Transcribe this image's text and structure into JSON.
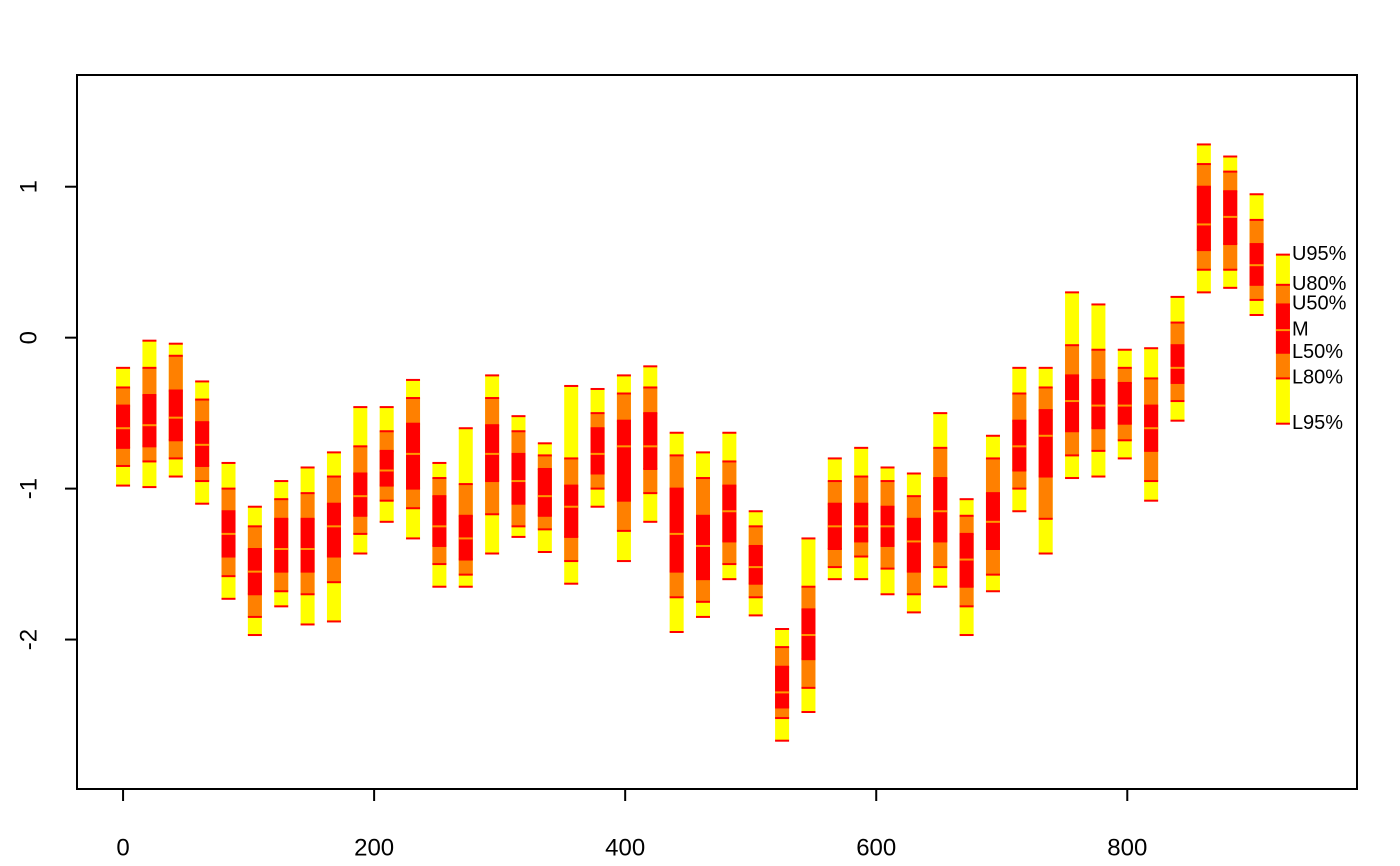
{
  "chart_data": {
    "type": "fan",
    "x": [
      0,
      21,
      42,
      63,
      84,
      105,
      126,
      147,
      168,
      189,
      210,
      231,
      252,
      273,
      294,
      315,
      336,
      357,
      378,
      399,
      420,
      441,
      462,
      483,
      504,
      525,
      546,
      567,
      588,
      609,
      630,
      651,
      672,
      693,
      714,
      735,
      756,
      777,
      798,
      819,
      840,
      861,
      882,
      903,
      924
    ],
    "series": [
      {
        "name": "U95%",
        "values": [
          -0.2,
          -0.02,
          -0.04,
          -0.29,
          -0.83,
          -1.12,
          -0.95,
          -0.86,
          -0.76,
          -0.46,
          -0.46,
          -0.28,
          -0.83,
          -0.6,
          -0.25,
          -0.52,
          -0.7,
          -0.32,
          -0.34,
          -0.25,
          -0.19,
          -0.63,
          -0.76,
          -0.63,
          -1.15,
          -1.93,
          -1.33,
          -0.8,
          -0.73,
          -0.86,
          -0.9,
          -0.5,
          -1.07,
          -0.65,
          -0.2,
          -0.2,
          0.3,
          0.22,
          -0.08,
          -0.07,
          0.27,
          1.28,
          1.2,
          0.95,
          0.55
        ]
      },
      {
        "name": "U80%",
        "values": [
          -0.33,
          -0.2,
          -0.12,
          -0.41,
          -1.0,
          -1.25,
          -1.07,
          -1.03,
          -0.92,
          -0.72,
          -0.62,
          -0.4,
          -0.93,
          -0.97,
          -0.4,
          -0.62,
          -0.78,
          -0.8,
          -0.5,
          -0.37,
          -0.33,
          -0.78,
          -0.93,
          -0.82,
          -1.25,
          -2.05,
          -1.65,
          -0.95,
          -0.92,
          -0.95,
          -1.05,
          -0.73,
          -1.18,
          -0.8,
          -0.37,
          -0.33,
          -0.05,
          -0.08,
          -0.2,
          -0.27,
          0.1,
          1.15,
          1.1,
          0.78,
          0.35
        ]
      },
      {
        "name": "U50%",
        "values": [
          -0.45,
          -0.38,
          -0.35,
          -0.56,
          -1.15,
          -1.4,
          -1.2,
          -1.2,
          -1.1,
          -0.9,
          -0.75,
          -0.57,
          -1.05,
          -1.18,
          -0.58,
          -0.77,
          -0.87,
          -0.98,
          -0.6,
          -0.55,
          -0.5,
          -1.0,
          -1.18,
          -0.98,
          -1.38,
          -2.18,
          -1.8,
          -1.1,
          -1.1,
          -1.12,
          -1.2,
          -0.93,
          -1.3,
          -1.03,
          -0.55,
          -0.48,
          -0.25,
          -0.28,
          -0.3,
          -0.45,
          -0.05,
          1.0,
          0.97,
          0.62,
          0.22
        ]
      },
      {
        "name": "M",
        "values": [
          -0.6,
          -0.58,
          -0.53,
          -0.71,
          -1.3,
          -1.55,
          -1.4,
          -1.4,
          -1.25,
          -1.05,
          -0.88,
          -0.77,
          -1.25,
          -1.33,
          -0.77,
          -0.95,
          -1.05,
          -1.12,
          -0.77,
          -0.72,
          -0.72,
          -1.3,
          -1.38,
          -1.15,
          -1.52,
          -2.35,
          -1.97,
          -1.25,
          -1.25,
          -1.25,
          -1.35,
          -1.15,
          -1.47,
          -1.22,
          -0.72,
          -0.65,
          -0.42,
          -0.45,
          -0.45,
          -0.6,
          -0.2,
          0.75,
          0.8,
          0.48,
          0.05
        ]
      },
      {
        "name": "L50%",
        "values": [
          -0.73,
          -0.72,
          -0.68,
          -0.85,
          -1.45,
          -1.7,
          -1.55,
          -1.55,
          -1.45,
          -1.18,
          -0.98,
          -1.0,
          -1.38,
          -1.47,
          -0.95,
          -1.1,
          -1.18,
          -1.32,
          -0.9,
          -1.08,
          -0.87,
          -1.55,
          -1.6,
          -1.35,
          -1.63,
          -2.45,
          -2.13,
          -1.4,
          -1.35,
          -1.38,
          -1.55,
          -1.35,
          -1.65,
          -1.4,
          -0.88,
          -0.92,
          -0.62,
          -0.6,
          -0.57,
          -0.75,
          -0.3,
          0.58,
          0.62,
          0.35,
          -0.1
        ]
      },
      {
        "name": "L80%",
        "values": [
          -0.85,
          -0.82,
          -0.8,
          -0.95,
          -1.58,
          -1.85,
          -1.68,
          -1.7,
          -1.62,
          -1.3,
          -1.08,
          -1.13,
          -1.5,
          -1.57,
          -1.17,
          -1.25,
          -1.27,
          -1.48,
          -1.0,
          -1.28,
          -1.03,
          -1.72,
          -1.75,
          -1.5,
          -1.72,
          -2.52,
          -2.32,
          -1.52,
          -1.45,
          -1.53,
          -1.7,
          -1.52,
          -1.78,
          -1.57,
          -1.0,
          -1.2,
          -0.78,
          -0.75,
          -0.68,
          -0.95,
          -0.42,
          0.45,
          0.45,
          0.25,
          -0.27
        ]
      },
      {
        "name": "L95%",
        "values": [
          -0.98,
          -0.99,
          -0.92,
          -1.1,
          -1.73,
          -1.97,
          -1.78,
          -1.9,
          -1.88,
          -1.43,
          -1.22,
          -1.33,
          -1.65,
          -1.65,
          -1.43,
          -1.32,
          -1.42,
          -1.63,
          -1.12,
          -1.48,
          -1.22,
          -1.95,
          -1.85,
          -1.6,
          -1.84,
          -2.67,
          -2.48,
          -1.6,
          -1.6,
          -1.7,
          -1.82,
          -1.65,
          -1.97,
          -1.68,
          -1.15,
          -1.43,
          -0.93,
          -0.92,
          -0.8,
          -1.08,
          -0.55,
          0.3,
          0.33,
          0.15,
          -0.57
        ]
      }
    ],
    "band_colors": [
      "#ffff00",
      "#ff8000",
      "#ff0000"
    ],
    "xlim": [
      -36.7,
      983
    ],
    "ylim": [
      -2.99,
      1.74
    ],
    "xticks": [
      0,
      200,
      400,
      600,
      800
    ],
    "yticks": [
      -2,
      -1,
      0,
      1
    ]
  }
}
